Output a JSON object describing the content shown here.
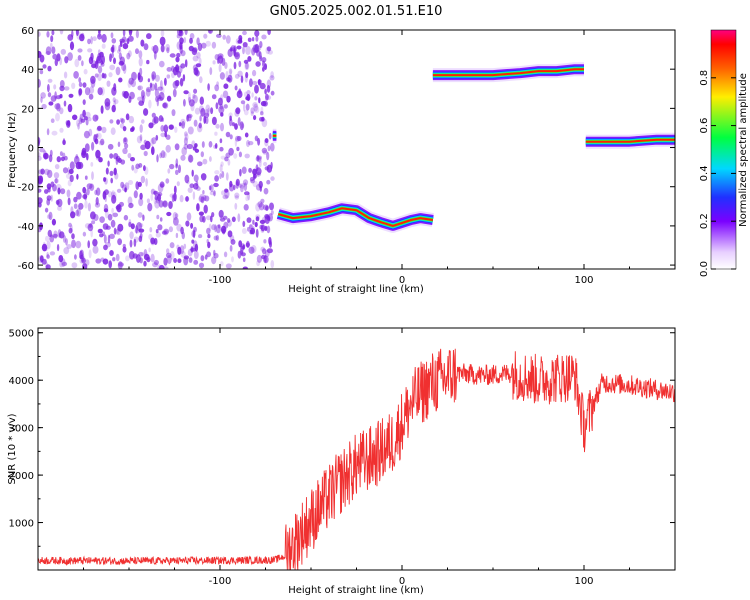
{
  "figure_title": "GN05.2025.002.01.51.E10",
  "colors": {
    "snr_line": "#f03030",
    "scatter_dots": "#7a1fe0",
    "axis": "#000000"
  },
  "chart_data": [
    {
      "type": "heatmap",
      "xlabel": "Height of straight line (km)",
      "ylabel": "Frequency (Hz)",
      "xlim": [
        -200,
        150
      ],
      "ylim": [
        -62,
        60
      ],
      "xticks": [
        -100,
        0,
        100
      ],
      "yticks": [
        -60,
        -40,
        -20,
        0,
        20,
        40,
        60
      ],
      "grid": false,
      "noise_region": {
        "x": [
          -200,
          -71
        ],
        "y": [
          -62,
          60
        ]
      },
      "tracks": [
        {
          "x": [
            -71,
            -69
          ],
          "y": [
            6,
            6
          ]
        },
        {
          "x": [
            -68,
            -60,
            -50,
            -40,
            -33,
            -25,
            -18,
            -12,
            -5,
            5,
            10,
            17
          ],
          "y": [
            -34,
            -36,
            -35,
            -33,
            -31,
            -32,
            -36,
            -38,
            -40,
            -37,
            -36,
            -37
          ]
        },
        {
          "x": [
            17,
            30,
            50,
            65,
            75,
            85,
            95,
            100
          ],
          "y": [
            37,
            37,
            37,
            38,
            39,
            39,
            40,
            40
          ]
        },
        {
          "x": [
            101,
            110,
            125,
            140,
            150
          ],
          "y": [
            3,
            3,
            3,
            4,
            4
          ]
        }
      ],
      "colorbar": {
        "label": "Normalized spectral amplitude",
        "range": [
          0,
          1
        ],
        "ticks": [
          0.0,
          0.2,
          0.4,
          0.6,
          0.8
        ]
      }
    },
    {
      "type": "line",
      "xlabel": "Height of straight line (km)",
      "ylabel": "SNR (10 * v/v)",
      "xlim": [
        -200,
        150
      ],
      "ylim": [
        0,
        5100
      ],
      "xticks": [
        -100,
        0,
        100
      ],
      "yticks": [
        1000,
        2000,
        3000,
        4000,
        5000
      ],
      "grid": false,
      "series": [
        {
          "x": [
            -200,
            -150,
            -100,
            -70,
            -64,
            -55,
            -45,
            -35,
            -25,
            -15,
            -5,
            5,
            15,
            30,
            45,
            60,
            75,
            85,
            95,
            100,
            110,
            125,
            140,
            150
          ],
          "y": [
            200,
            190,
            200,
            210,
            300,
            800,
            1300,
            1800,
            2200,
            2400,
            2700,
            3500,
            3900,
            4150,
            4100,
            4150,
            4000,
            4050,
            4100,
            3000,
            3950,
            3900,
            3800,
            3750
          ]
        }
      ]
    }
  ]
}
